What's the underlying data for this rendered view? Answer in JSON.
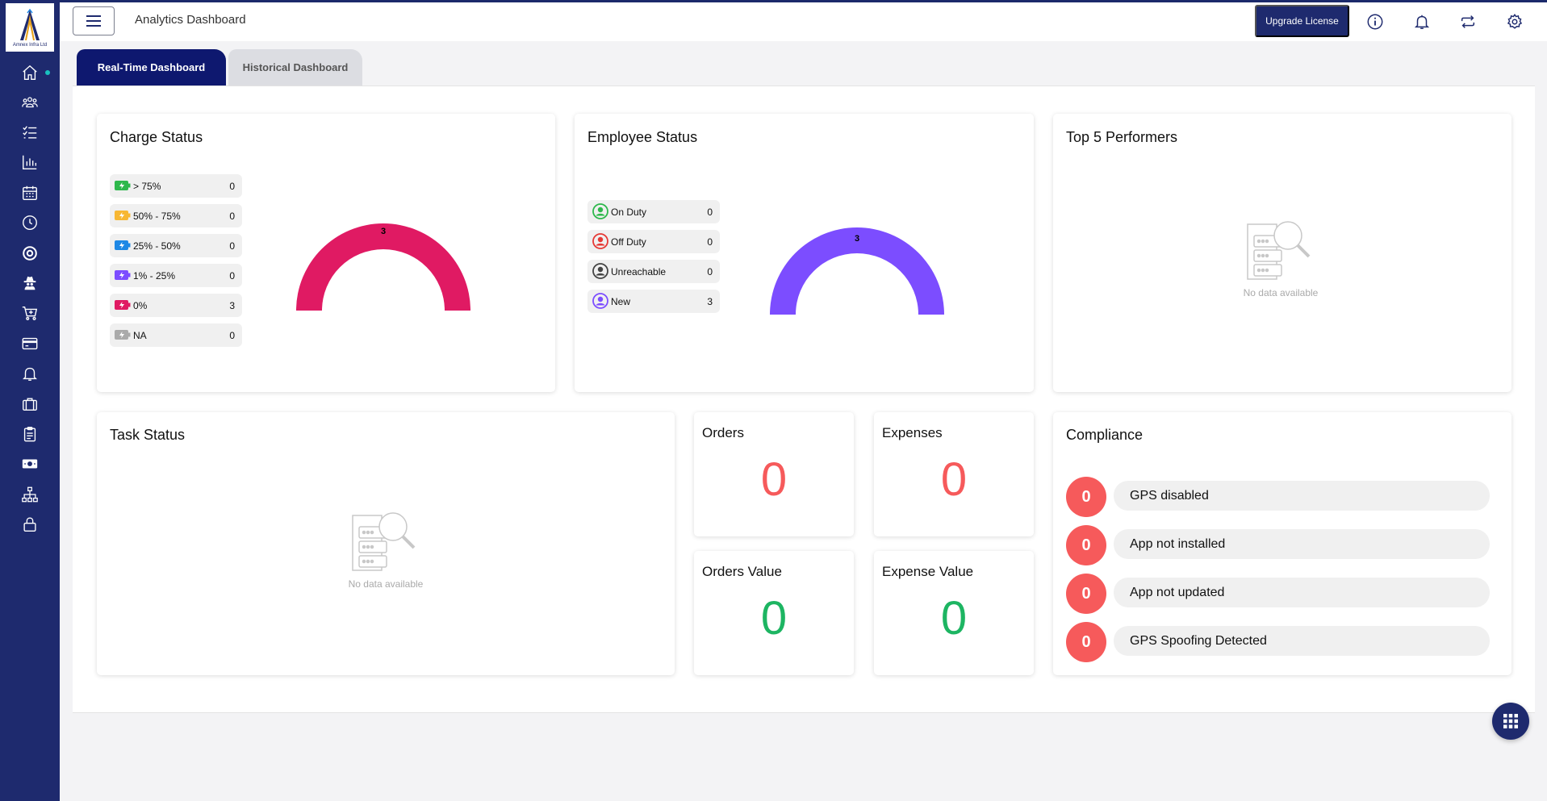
{
  "colors": {
    "brand": "#1e2a6e",
    "tab_active": "#0e186f",
    "charge_arc": "#e01a63",
    "employee_arc": "#7c4dff",
    "count_red": "#f65a5b",
    "count_green": "#1db562",
    "sidebar_active_dot": "#19c1bf"
  },
  "logo": {
    "text": "Amnex Infra Ltd"
  },
  "sidebar": {
    "items": [
      {
        "icon": "home-icon",
        "active": true
      },
      {
        "icon": "team-icon"
      },
      {
        "icon": "task-list-icon"
      },
      {
        "icon": "bar-chart-icon"
      },
      {
        "icon": "calendar-icon"
      },
      {
        "icon": "clock-icon"
      },
      {
        "icon": "target-icon"
      },
      {
        "icon": "spy-icon"
      },
      {
        "icon": "cart-icon"
      },
      {
        "icon": "credit-card-icon"
      },
      {
        "icon": "bell-icon"
      },
      {
        "icon": "briefcase-icon"
      },
      {
        "icon": "clipboard-icon"
      },
      {
        "icon": "money-icon"
      },
      {
        "icon": "org-chart-icon"
      },
      {
        "icon": "lock-icon"
      }
    ]
  },
  "header": {
    "title": "Analytics Dashboard",
    "upgrade_label": "Upgrade License",
    "icons": [
      "info-icon",
      "bell-icon",
      "sync-icon",
      "gear-icon"
    ]
  },
  "tabs": [
    {
      "label": "Real-Time Dashboard",
      "active": true
    },
    {
      "label": "Historical Dashboard",
      "active": false
    }
  ],
  "charge_status": {
    "title": "Charge Status",
    "items": [
      {
        "label": "> 75%",
        "count": "0",
        "color": "#2eb84c"
      },
      {
        "label": "50% - 75%",
        "count": "0",
        "color": "#f7b733"
      },
      {
        "label": "25% - 50%",
        "count": "0",
        "color": "#1e88e5"
      },
      {
        "label": "1% - 25%",
        "count": "0",
        "color": "#7c4dff"
      },
      {
        "label": "0%",
        "count": "3",
        "color": "#e01a63"
      },
      {
        "label": "NA",
        "count": "0",
        "color": "#aaaaaa"
      }
    ],
    "gauge_label": "3"
  },
  "employee_status": {
    "title": "Employee Status",
    "items": [
      {
        "label": "On Duty",
        "count": "0",
        "color": "#2eb84c"
      },
      {
        "label": "Off Duty",
        "count": "0",
        "color": "#e53935"
      },
      {
        "label": "Unreachable",
        "count": "0",
        "color": "#444444"
      },
      {
        "label": "New",
        "count": "3",
        "color": "#7c4dff"
      }
    ],
    "gauge_label": "3"
  },
  "top_performers": {
    "title": "Top 5 Performers",
    "empty_text": "No data available"
  },
  "task_status": {
    "title": "Task Status",
    "empty_text": "No data available"
  },
  "stats": {
    "orders": {
      "title": "Orders",
      "value": "0"
    },
    "expenses": {
      "title": "Expenses",
      "value": "0"
    },
    "orders_value": {
      "title": "Orders Value",
      "value": "0"
    },
    "expense_value": {
      "title": "Expense Value",
      "value": "0"
    }
  },
  "compliance": {
    "title": "Compliance",
    "items": [
      {
        "count": "0",
        "label": "GPS disabled"
      },
      {
        "count": "0",
        "label": "App not installed"
      },
      {
        "count": "0",
        "label": "App not updated"
      },
      {
        "count": "0",
        "label": "GPS Spoofing Detected"
      }
    ]
  }
}
